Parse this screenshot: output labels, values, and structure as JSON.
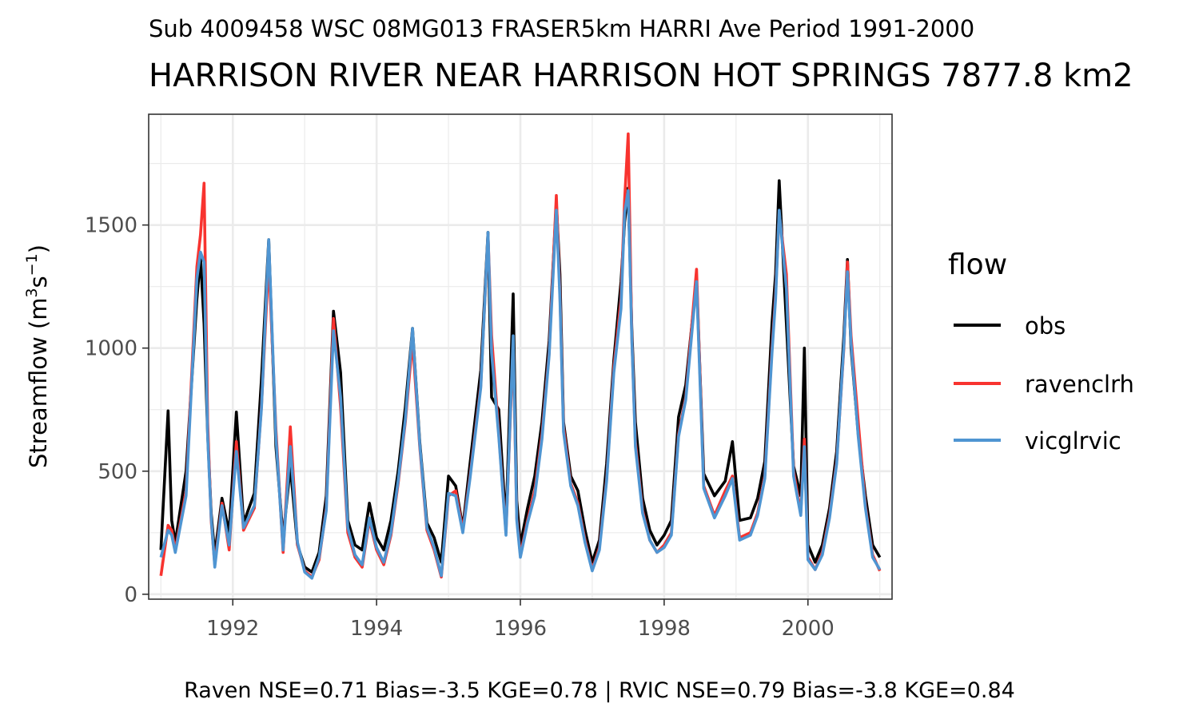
{
  "subtitle": "Sub 4009458 WSC 08MG013 FRASER5km HARRI Ave Period 1991-2000",
  "title": "HARRISON RIVER NEAR HARRISON HOT SPRINGS 7877.8 km2",
  "ylabel_main": "Streamflow (m",
  "ylabel_sup1": "3",
  "ylabel_mid": "s",
  "ylabel_sup2": "−1",
  "ylabel_end": ")",
  "caption": "Raven NSE=0.71 Bias=-3.5 KGE=0.78 | RVIC NSE=0.79 Bias=-3.8 KGE=0.84",
  "legend_title": "flow",
  "colors": {
    "obs": "#000000",
    "ravenclrh": "#f8332f",
    "vicglrvic": "#4f95d2"
  },
  "chart_data": {
    "type": "line",
    "x_unit": "decimal year",
    "xlim": [
      1990.83,
      2001.17
    ],
    "ylim": [
      -20,
      1950
    ],
    "x_ticks": [
      1992,
      1994,
      1996,
      1998,
      2000
    ],
    "x_tick_labels": [
      "1992",
      "1994",
      "1996",
      "1998",
      "2000"
    ],
    "y_ticks": [
      0,
      500,
      1000,
      1500
    ],
    "y_tick_labels": [
      "0",
      "500",
      "1000",
      "1500"
    ],
    "grid": true,
    "legend_position": "right",
    "series": [
      {
        "name": "obs",
        "x": [
          1991.0,
          1991.1,
          1991.15,
          1991.2,
          1991.35,
          1991.5,
          1991.55,
          1991.6,
          1991.65,
          1991.7,
          1991.75,
          1991.85,
          1991.95,
          1992.05,
          1992.15,
          1992.3,
          1992.4,
          1992.5,
          1992.6,
          1992.7,
          1992.8,
          1992.9,
          1993.0,
          1993.1,
          1993.2,
          1993.3,
          1993.4,
          1993.5,
          1993.6,
          1993.7,
          1993.8,
          1993.9,
          1994.0,
          1994.1,
          1994.2,
          1994.3,
          1994.4,
          1994.5,
          1994.6,
          1994.7,
          1994.8,
          1994.9,
          1995.0,
          1995.1,
          1995.2,
          1995.3,
          1995.45,
          1995.55,
          1995.6,
          1995.7,
          1995.8,
          1995.9,
          1995.95,
          1996.0,
          1996.1,
          1996.2,
          1996.3,
          1996.4,
          1996.5,
          1996.55,
          1996.6,
          1996.7,
          1996.8,
          1996.9,
          1997.0,
          1997.1,
          1997.2,
          1997.3,
          1997.4,
          1997.45,
          1997.5,
          1997.55,
          1997.6,
          1997.7,
          1997.8,
          1997.9,
          1998.0,
          1998.1,
          1998.2,
          1998.3,
          1998.45,
          1998.55,
          1998.7,
          1998.85,
          1998.95,
          1999.05,
          1999.2,
          1999.3,
          1999.4,
          1999.5,
          1999.55,
          1999.6,
          1999.7,
          1999.8,
          1999.9,
          1999.95,
          2000.0,
          2000.1,
          2000.2,
          2000.3,
          2000.4,
          2000.5,
          2000.55,
          2000.6,
          2000.7,
          2000.8,
          2000.9,
          2001.0
        ],
        "y": [
          180,
          745,
          300,
          210,
          500,
          1200,
          1370,
          1100,
          650,
          330,
          160,
          390,
          250,
          740,
          290,
          410,
          880,
          1440,
          600,
          230,
          520,
          200,
          110,
          90,
          170,
          400,
          1150,
          900,
          300,
          200,
          180,
          370,
          230,
          180,
          300,
          500,
          760,
          1080,
          620,
          290,
          230,
          130,
          480,
          440,
          270,
          530,
          910,
          1470,
          800,
          750,
          280,
          1220,
          380,
          200,
          350,
          480,
          700,
          1030,
          1590,
          1300,
          700,
          480,
          420,
          260,
          130,
          220,
          530,
          950,
          1270,
          1510,
          1650,
          1080,
          700,
          390,
          260,
          200,
          240,
          300,
          720,
          850,
          1280,
          490,
          400,
          460,
          620,
          300,
          310,
          390,
          540,
          1100,
          1300,
          1680,
          1100,
          520,
          400,
          1000,
          200,
          130,
          200,
          350,
          580,
          1050,
          1360,
          1000,
          650,
          400,
          200,
          150
        ]
      },
      {
        "name": "ravenclrh",
        "x": [
          1991.0,
          1991.1,
          1991.15,
          1991.2,
          1991.35,
          1991.5,
          1991.55,
          1991.6,
          1991.65,
          1991.7,
          1991.75,
          1991.85,
          1991.95,
          1992.05,
          1992.15,
          1992.3,
          1992.4,
          1992.5,
          1992.6,
          1992.7,
          1992.8,
          1992.9,
          1993.0,
          1993.1,
          1993.2,
          1993.3,
          1993.4,
          1993.5,
          1993.6,
          1993.7,
          1993.8,
          1993.9,
          1994.0,
          1994.1,
          1994.2,
          1994.3,
          1994.4,
          1994.5,
          1994.6,
          1994.7,
          1994.8,
          1994.9,
          1995.0,
          1995.1,
          1995.2,
          1995.3,
          1995.45,
          1995.55,
          1995.6,
          1995.7,
          1995.8,
          1995.9,
          1995.95,
          1996.0,
          1996.1,
          1996.2,
          1996.3,
          1996.4,
          1996.5,
          1996.55,
          1996.6,
          1996.7,
          1996.8,
          1996.9,
          1997.0,
          1997.1,
          1997.2,
          1997.3,
          1997.4,
          1997.45,
          1997.5,
          1997.55,
          1997.6,
          1997.7,
          1997.8,
          1997.9,
          1998.0,
          1998.1,
          1998.2,
          1998.3,
          1998.45,
          1998.55,
          1998.7,
          1998.85,
          1998.95,
          1999.05,
          1999.2,
          1999.3,
          1999.4,
          1999.5,
          1999.55,
          1999.6,
          1999.7,
          1999.8,
          1999.9,
          1999.95,
          2000.0,
          2000.1,
          2000.2,
          2000.3,
          2000.4,
          2000.5,
          2000.55,
          2000.6,
          2000.7,
          2000.8,
          2000.9,
          2001.0
        ],
        "y": [
          75,
          280,
          260,
          180,
          420,
          1330,
          1460,
          1670,
          700,
          300,
          120,
          370,
          180,
          620,
          260,
          350,
          770,
          1360,
          670,
          170,
          680,
          200,
          95,
          70,
          140,
          350,
          1120,
          760,
          250,
          150,
          110,
          300,
          180,
          120,
          240,
          450,
          700,
          1030,
          600,
          260,
          180,
          70,
          400,
          420,
          260,
          480,
          850,
          1460,
          1050,
          650,
          250,
          1020,
          310,
          160,
          300,
          420,
          650,
          980,
          1620,
          1220,
          680,
          450,
          370,
          220,
          100,
          190,
          470,
          920,
          1200,
          1600,
          1870,
          1050,
          620,
          340,
          220,
          170,
          200,
          250,
          650,
          800,
          1320,
          440,
          320,
          420,
          480,
          230,
          250,
          330,
          480,
          1000,
          1220,
          1550,
          1300,
          500,
          330,
          630,
          150,
          100,
          170,
          320,
          540,
          1000,
          1350,
          1050,
          700,
          360,
          160,
          95
        ]
      },
      {
        "name": "vicglrvic",
        "x": [
          1991.0,
          1991.1,
          1991.15,
          1991.2,
          1991.35,
          1991.5,
          1991.55,
          1991.6,
          1991.65,
          1991.7,
          1991.75,
          1991.85,
          1991.95,
          1992.05,
          1992.15,
          1992.3,
          1992.4,
          1992.5,
          1992.6,
          1992.7,
          1992.8,
          1992.9,
          1993.0,
          1993.1,
          1993.2,
          1993.3,
          1993.4,
          1993.5,
          1993.6,
          1993.7,
          1993.8,
          1993.9,
          1994.0,
          1994.1,
          1994.2,
          1994.3,
          1994.4,
          1994.5,
          1994.6,
          1994.7,
          1994.8,
          1994.9,
          1995.0,
          1995.1,
          1995.2,
          1995.3,
          1995.45,
          1995.55,
          1995.6,
          1995.7,
          1995.8,
          1995.9,
          1995.95,
          1996.0,
          1996.1,
          1996.2,
          1996.3,
          1996.4,
          1996.5,
          1996.55,
          1996.6,
          1996.7,
          1996.8,
          1996.9,
          1997.0,
          1997.1,
          1997.2,
          1997.3,
          1997.4,
          1997.45,
          1997.5,
          1997.55,
          1997.6,
          1997.7,
          1997.8,
          1997.9,
          1998.0,
          1998.1,
          1998.2,
          1998.3,
          1998.45,
          1998.55,
          1998.7,
          1998.85,
          1998.95,
          1999.05,
          1999.2,
          1999.3,
          1999.4,
          1999.5,
          1999.55,
          1999.6,
          1999.7,
          1999.8,
          1999.9,
          1999.95,
          2000.0,
          2000.1,
          2000.2,
          2000.3,
          2000.4,
          2000.5,
          2000.55,
          2000.6,
          2000.7,
          2000.8,
          2000.9,
          2001.0
        ],
        "y": [
          150,
          260,
          240,
          170,
          400,
          1280,
          1390,
          1350,
          640,
          310,
          110,
          360,
          200,
          580,
          270,
          360,
          760,
          1440,
          640,
          180,
          600,
          210,
          90,
          65,
          150,
          340,
          1070,
          800,
          270,
          160,
          120,
          310,
          190,
          130,
          250,
          460,
          710,
          1080,
          610,
          270,
          190,
          75,
          410,
          400,
          250,
          470,
          840,
          1470,
          980,
          640,
          240,
          1050,
          300,
          150,
          290,
          400,
          630,
          970,
          1560,
          1200,
          660,
          440,
          360,
          210,
          95,
          180,
          460,
          900,
          1160,
          1550,
          1640,
          1040,
          600,
          330,
          220,
          170,
          190,
          240,
          640,
          790,
          1270,
          430,
          310,
          400,
          470,
          220,
          240,
          320,
          470,
          980,
          1200,
          1560,
          1240,
          480,
          320,
          600,
          140,
          100,
          160,
          310,
          530,
          1010,
          1310,
          1020,
          640,
          350,
          150,
          100
        ]
      }
    ]
  }
}
